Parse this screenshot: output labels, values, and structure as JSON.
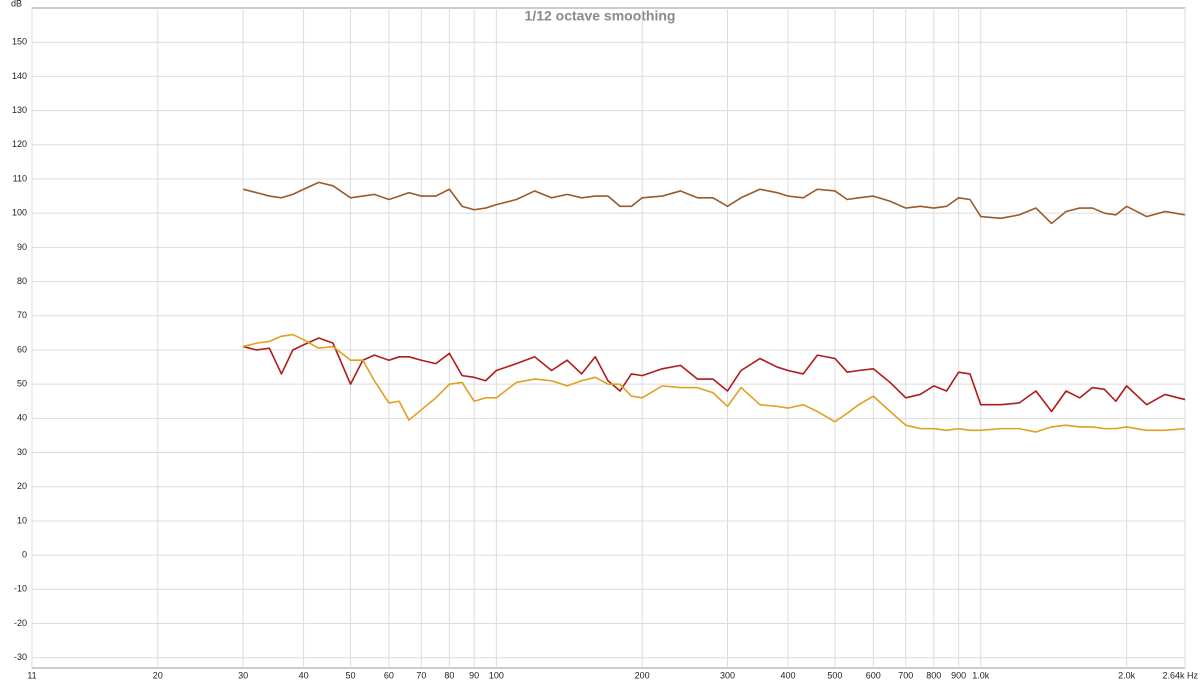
{
  "chart_data": {
    "type": "line",
    "title": "1/12 octave smoothing",
    "y_label": "dB",
    "log_x": true,
    "grid": true,
    "xlim": [
      11,
      2640
    ],
    "ylim": [
      -33,
      160
    ],
    "xticks": [
      11,
      20,
      30,
      40,
      50,
      60,
      70,
      80,
      90,
      100,
      200,
      300,
      400,
      500,
      600,
      700,
      800,
      900,
      {
        "value": 1000,
        "label": "1.0k"
      },
      {
        "value": 2000,
        "label": "2.0k"
      },
      {
        "value": 2640,
        "label": "2.64k Hz"
      }
    ],
    "yticks": [
      -30,
      -20,
      -10,
      0,
      10,
      20,
      30,
      40,
      50,
      60,
      70,
      80,
      90,
      100,
      110,
      120,
      130,
      140,
      150
    ],
    "x": [
      30,
      32,
      34,
      36,
      38,
      40,
      43,
      46,
      50,
      53,
      56,
      60,
      63,
      66,
      70,
      75,
      80,
      85,
      90,
      95,
      100,
      110,
      120,
      130,
      140,
      150,
      160,
      170,
      180,
      190,
      200,
      220,
      240,
      260,
      280,
      300,
      320,
      350,
      380,
      400,
      430,
      460,
      500,
      530,
      560,
      600,
      650,
      700,
      750,
      800,
      850,
      900,
      950,
      1000,
      1100,
      1200,
      1300,
      1400,
      1500,
      1600,
      1700,
      1800,
      1900,
      2000,
      2200,
      2400,
      2640
    ],
    "series": [
      {
        "color": "#9a5a2a",
        "values": [
          107,
          106,
          105,
          104.5,
          105.5,
          107,
          109,
          108,
          104.5,
          105,
          105.5,
          104,
          105,
          106,
          105,
          105,
          107,
          102,
          101,
          101.5,
          102.5,
          104,
          106.5,
          104.5,
          105.5,
          104.5,
          105,
          105,
          102,
          102,
          104.5,
          105,
          106.5,
          104.5,
          104.5,
          102,
          104.5,
          107,
          106,
          105,
          104.5,
          107,
          106.5,
          104,
          104.5,
          105,
          103.5,
          101.5,
          102,
          101.5,
          102,
          104.5,
          104,
          99,
          98.5,
          99.5,
          101.5,
          97,
          100.5,
          101.5,
          101.5,
          100,
          99.5,
          102,
          99,
          100.5,
          99.5
        ]
      },
      {
        "color": "#b01c1c",
        "values": [
          61,
          60,
          60.5,
          53,
          60,
          61.5,
          63.5,
          62,
          50,
          57,
          58.5,
          57,
          58,
          58,
          57,
          56,
          59,
          52.5,
          52,
          51,
          54,
          56,
          58,
          54,
          57,
          53,
          58,
          51,
          48,
          53,
          52.5,
          54.5,
          55.5,
          51.5,
          51.5,
          48,
          54,
          57.5,
          55,
          54,
          53,
          58.5,
          57.5,
          53.5,
          54,
          54.5,
          50.5,
          46,
          47,
          49.5,
          48,
          53.5,
          53,
          44,
          44,
          44.5,
          48,
          42,
          48,
          46,
          49,
          48.5,
          45,
          49.5,
          44,
          47,
          45.5
        ]
      },
      {
        "color": "#e0a020",
        "values": [
          61,
          62,
          62.5,
          64,
          64.5,
          63,
          60.5,
          61,
          57,
          57,
          51,
          44.5,
          45,
          39.5,
          42.5,
          46,
          50,
          50.5,
          45,
          46,
          46,
          50.5,
          51.5,
          51,
          49.5,
          51,
          52,
          50,
          50,
          46.5,
          46,
          49.5,
          49,
          49,
          47.5,
          43.5,
          49,
          44,
          43.5,
          43,
          44,
          42,
          39,
          41.5,
          44,
          46.5,
          42,
          38,
          37,
          37,
          36.5,
          37,
          36.5,
          36.5,
          37,
          37,
          36,
          37.5,
          38,
          37.5,
          37.5,
          37,
          37,
          37.5,
          36.5,
          36.5,
          37
        ]
      }
    ]
  }
}
